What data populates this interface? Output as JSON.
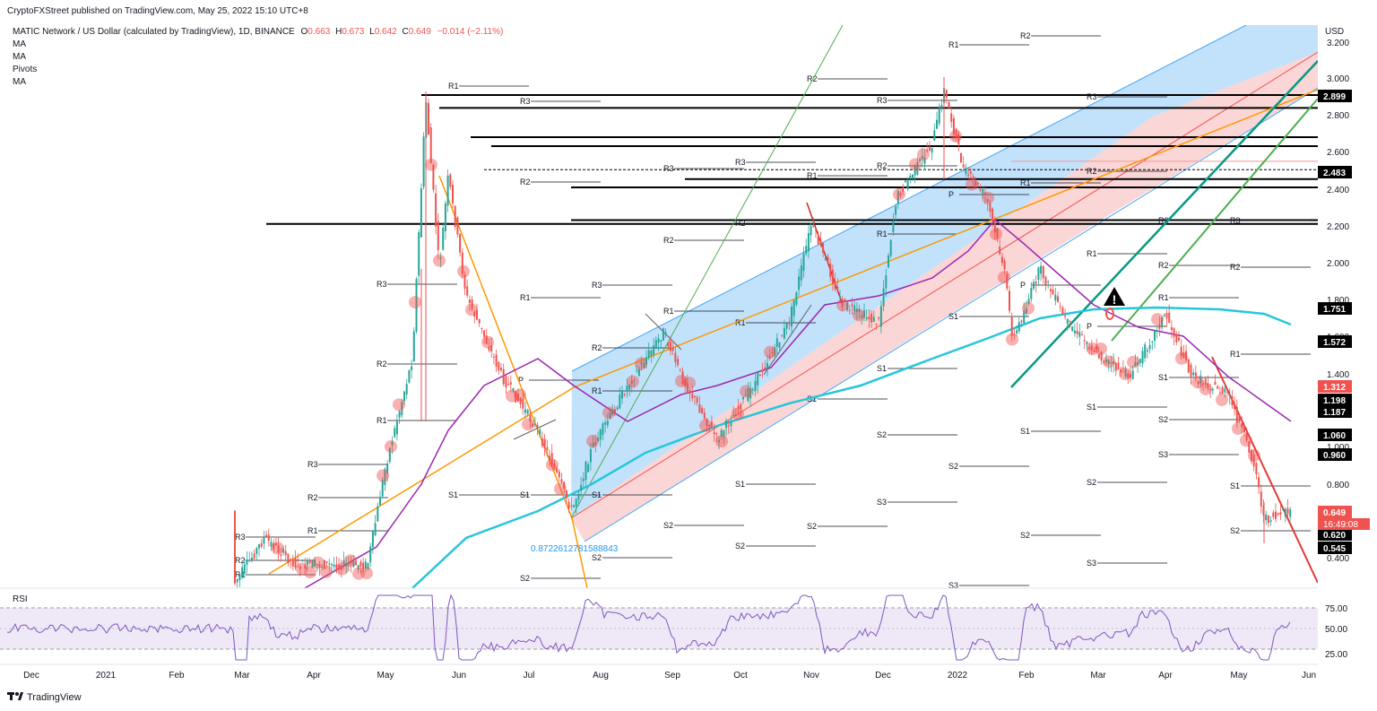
{
  "header": {
    "published": "CryptoFXStreet published on TradingView.com, May 25, 2022 15:10 UTC+8",
    "symbol": "MATIC Network / US Dollar (calculated by TradingView), 1D, BINANCE",
    "ohlc": {
      "o_label": "O",
      "o": "0.663",
      "h_label": "H",
      "h": "0.673",
      "l_label": "L",
      "l": "0.642",
      "c_label": "C",
      "c": "0.649",
      "change": "−0.014 (−2.11%)"
    },
    "indicators": [
      "MA",
      "MA",
      "Pivots",
      "MA"
    ],
    "currency": "USD"
  },
  "footer": {
    "brand": "TradingView"
  },
  "colors": {
    "up": "#26a69a",
    "down": "#ef5350",
    "blue_channel": "#90caf9",
    "red_channel": "#f8bbbb",
    "orange": "#ff9800",
    "purple": "#9c27b0",
    "cyan": "#26c6da",
    "green": "#4caf50",
    "teal": "#089981",
    "red_line": "#e53935"
  },
  "chart_data": {
    "type": "candlestick",
    "yscale": "log",
    "ylim": [
      0.27,
      3.3
    ],
    "x_tick_labels": [
      "Dec",
      "2021",
      "Feb",
      "Mar",
      "Apr",
      "May",
      "Jun",
      "Jul",
      "Aug",
      "Sep",
      "Oct",
      "Nov",
      "Dec",
      "2022",
      "Feb",
      "Mar",
      "Apr",
      "May",
      "Jun"
    ],
    "y_tick_labels": [
      "3.200",
      "3.000",
      "2.800",
      "2.600",
      "2.400",
      "2.200",
      "2.000",
      "1.800",
      "1.600",
      "1.400",
      "1.000",
      "0.800",
      "0.400"
    ],
    "price_tags": [
      {
        "label": "2.899",
        "value": 2.899,
        "style": "black"
      },
      {
        "label": "2.483",
        "value": 2.483,
        "style": "black"
      },
      {
        "label": "1.751",
        "value": 1.751,
        "style": "black"
      },
      {
        "label": "1.572",
        "value": 1.572,
        "style": "black"
      },
      {
        "label": "1.312",
        "value": 1.312,
        "style": "red"
      },
      {
        "label": "1.198",
        "value": 1.198,
        "style": "black"
      },
      {
        "label": "1.187",
        "value": 1.187,
        "style": "black"
      },
      {
        "label": "1.060",
        "value": 1.06,
        "style": "black"
      },
      {
        "label": "0.960",
        "value": 0.96,
        "style": "black"
      },
      {
        "label": "0.649",
        "value": 0.649,
        "style": "red"
      },
      {
        "label": "0.620",
        "value": 0.62,
        "style": "black"
      },
      {
        "label": "0.545",
        "value": 0.545,
        "style": "black"
      }
    ],
    "countdown": "16:49:08",
    "fib_annotation": "0.8722612781588843",
    "pivot_labels": [
      [
        "R1",
        500,
        96
      ],
      [
        "R3",
        580,
        113
      ],
      [
        "R2",
        580,
        203
      ],
      [
        "R1",
        580,
        332
      ],
      [
        "R3",
        420,
        317
      ],
      [
        "R2",
        420,
        406
      ],
      [
        "R1",
        420,
        469
      ],
      [
        "R3",
        343,
        518
      ],
      [
        "R2",
        343,
        555
      ],
      [
        "R1",
        343,
        592
      ],
      [
        "R3",
        262,
        599
      ],
      [
        "R2",
        262,
        625
      ],
      [
        "R1",
        262,
        641
      ],
      [
        "S1",
        500,
        552
      ],
      [
        "S1",
        580,
        552
      ],
      [
        "P",
        578,
        424
      ],
      [
        "S1",
        660,
        552
      ],
      [
        "R3",
        660,
        318
      ],
      [
        "R2",
        660,
        388
      ],
      [
        "R1",
        660,
        436
      ],
      [
        "S2",
        740,
        586
      ],
      [
        "S2",
        660,
        622
      ],
      [
        "S2",
        580,
        645
      ],
      [
        "R2",
        740,
        268
      ],
      [
        "R3",
        740,
        188
      ],
      [
        "R1",
        740,
        347
      ],
      [
        "R2",
        820,
        249
      ],
      [
        "R3",
        820,
        181
      ],
      [
        "R1",
        820,
        360
      ],
      [
        "S1",
        820,
        540
      ],
      [
        "S2",
        820,
        609
      ],
      [
        "R2",
        900,
        88
      ],
      [
        "R1",
        900,
        196
      ],
      [
        "S1",
        900,
        445
      ],
      [
        "R3",
        978,
        112
      ],
      [
        "R2",
        978,
        185
      ],
      [
        "R1",
        978,
        261
      ],
      [
        "S1",
        978,
        411
      ],
      [
        "S2",
        978,
        485
      ],
      [
        "S3",
        978,
        560
      ],
      [
        "S2",
        900,
        587
      ],
      [
        "R1",
        1058,
        50
      ],
      [
        "R2",
        1138,
        40
      ],
      [
        "P",
        1058,
        217
      ],
      [
        "S1",
        1058,
        353
      ],
      [
        "S2",
        1058,
        520
      ],
      [
        "S3",
        1058,
        653
      ],
      [
        "R1",
        1138,
        204
      ],
      [
        "S1",
        1138,
        481
      ],
      [
        "S2",
        1138,
        597
      ],
      [
        "R3",
        1212,
        108
      ],
      [
        "R2",
        1212,
        191
      ],
      [
        "R1",
        1212,
        283
      ],
      [
        "P",
        1138,
        318
      ],
      [
        "P",
        1212,
        364
      ],
      [
        "S1",
        1212,
        454
      ],
      [
        "S2",
        1212,
        538
      ],
      [
        "S3",
        1212,
        628
      ],
      [
        "R3",
        1292,
        246
      ],
      [
        "R2",
        1292,
        296
      ],
      [
        "R1",
        1292,
        332
      ],
      [
        "S1",
        1292,
        421
      ],
      [
        "S2",
        1292,
        468
      ],
      [
        "S3",
        1292,
        507
      ],
      [
        "R3",
        1372,
        246
      ],
      [
        "R2",
        1372,
        298
      ],
      [
        "R1",
        1372,
        395
      ],
      [
        "S1",
        1372,
        542
      ],
      [
        "S2",
        1372,
        592
      ]
    ],
    "rsi": {
      "label": "RSI",
      "levels": [
        "75.00",
        "50.00",
        "25.00"
      ],
      "overbought": 70,
      "oversold": 30
    }
  }
}
